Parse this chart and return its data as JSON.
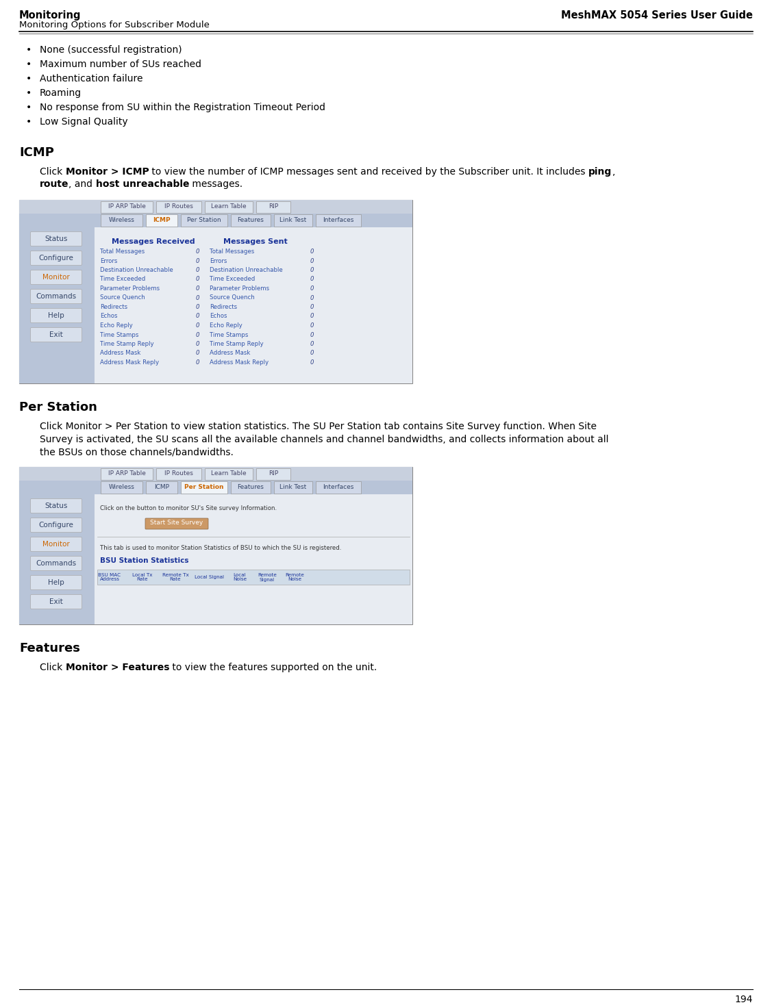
{
  "page_title_left": "Monitoring",
  "page_subtitle_left": "Monitoring Options for Subscriber Module",
  "page_title_right": "MeshMAX 5054 Series User Guide",
  "page_number": "194",
  "bullet_items": [
    "None (successful registration)",
    "Maximum number of SUs reached",
    "Authentication failure",
    "Roaming",
    "No response from SU within the Registration Timeout Period",
    "Low Signal Quality"
  ],
  "section_icmp": "ICMP",
  "section_per_station": "Per Station",
  "section_features": "Features",
  "bg_color": "#ffffff",
  "body_text_color": "#000000",
  "tab_bg": "#b8c4d8",
  "nav_btn_bg": "#d4dce8",
  "nav_monitor_color": "#cc6600",
  "content_bg": "#e8ecf2",
  "messages_header_color": "#1a3399",
  "messages_row_color": "#3355aa",
  "tab1_labels": [
    "IP ARP Table",
    "IP Routes",
    "Learn Table",
    "RIP"
  ],
  "tab2_labels": [
    "Wireless",
    "ICMP",
    "Per Station",
    "Features",
    "Link Test",
    "Interfaces"
  ],
  "nav_buttons": [
    "Status",
    "Configure",
    "Monitor",
    "Commands",
    "Help",
    "Exit"
  ],
  "msg_rows": [
    "Total Messages",
    "Errors",
    "Destination Unreachable",
    "Time Exceeded",
    "Parameter Problems",
    "Source Quench",
    "Redirects",
    "Echos",
    "Echo Reply",
    "Time Stamps",
    "Time Stamp Reply",
    "Address Mask",
    "Address Mask Reply"
  ]
}
